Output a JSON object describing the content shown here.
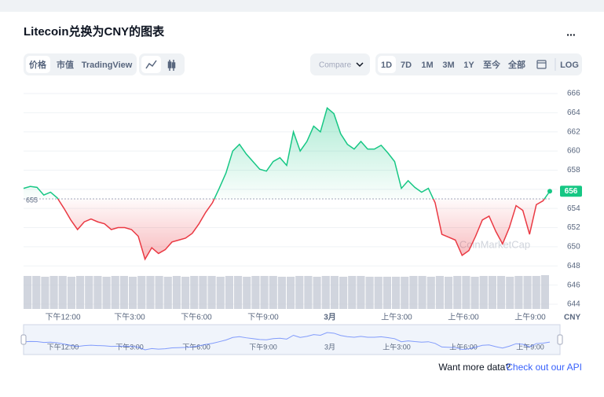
{
  "header": {
    "title": "Litecoin兑换为CNY的图表",
    "menu": "...",
    "tabs": [
      "价格",
      "市值",
      "TradingView"
    ],
    "compare": "Compare",
    "ranges": [
      "1D",
      "7D",
      "1M",
      "3M",
      "1Y",
      "至今",
      "全部"
    ],
    "log": "LOG"
  },
  "chart_data": {
    "type": "line",
    "baseline": 655,
    "baseline_label": "655",
    "current_label": "656",
    "currency": "CNY",
    "watermark": "CoinMarketCap",
    "ylim": [
      644,
      666
    ],
    "yticks": [
      644,
      646,
      648,
      650,
      652,
      654,
      656,
      658,
      660,
      662,
      664,
      666
    ],
    "xtick_labels": [
      "下午12:00",
      "下午3:00",
      "下午6:00",
      "下午9:00",
      "3月",
      "上午3:00",
      "上午6:00",
      "上午9:00"
    ],
    "up_color": "#16c784",
    "down_color": "#ea3943",
    "series": [
      {
        "name": "价格",
        "values": [
          656.1,
          656.3,
          656.2,
          655.4,
          655.7,
          655.1,
          654.0,
          652.8,
          651.8,
          652.6,
          652.9,
          652.6,
          652.4,
          651.8,
          652.0,
          652.0,
          651.8,
          651.1,
          648.7,
          649.9,
          649.3,
          649.7,
          650.5,
          650.7,
          650.9,
          651.4,
          652.4,
          653.6,
          654.6,
          656.1,
          657.7,
          660.0,
          660.7,
          659.7,
          658.9,
          658.1,
          657.9,
          658.9,
          659.3,
          658.5,
          662.0,
          660.0,
          661.0,
          662.6,
          662.0,
          664.5,
          663.9,
          661.8,
          660.7,
          660.2,
          661.0,
          660.2,
          660.2,
          660.6,
          659.8,
          658.9,
          656.1,
          656.9,
          656.2,
          655.7,
          656.1,
          654.6,
          651.3,
          651.0,
          650.7,
          649.1,
          649.6,
          651.1,
          652.8,
          653.2,
          651.6,
          650.3,
          652.0,
          654.3,
          653.8,
          651.3,
          654.4,
          654.8,
          655.8
        ]
      }
    ],
    "volume": [
      42,
      42,
      41,
      42,
      42,
      41,
      42,
      42,
      42,
      41,
      42,
      42,
      41,
      42,
      42,
      42,
      41,
      42,
      41,
      42,
      42,
      42,
      41,
      42,
      42,
      41,
      42,
      42,
      42,
      41,
      41,
      42,
      42,
      41,
      42,
      42,
      41,
      42,
      42,
      41,
      41,
      41,
      41,
      41,
      42,
      42,
      41,
      42,
      41,
      42,
      42,
      41,
      42,
      42,
      42,
      41,
      42,
      42,
      42,
      43
    ]
  },
  "footer": {
    "prompt": "Want more data?",
    "link": "Check out our API"
  }
}
